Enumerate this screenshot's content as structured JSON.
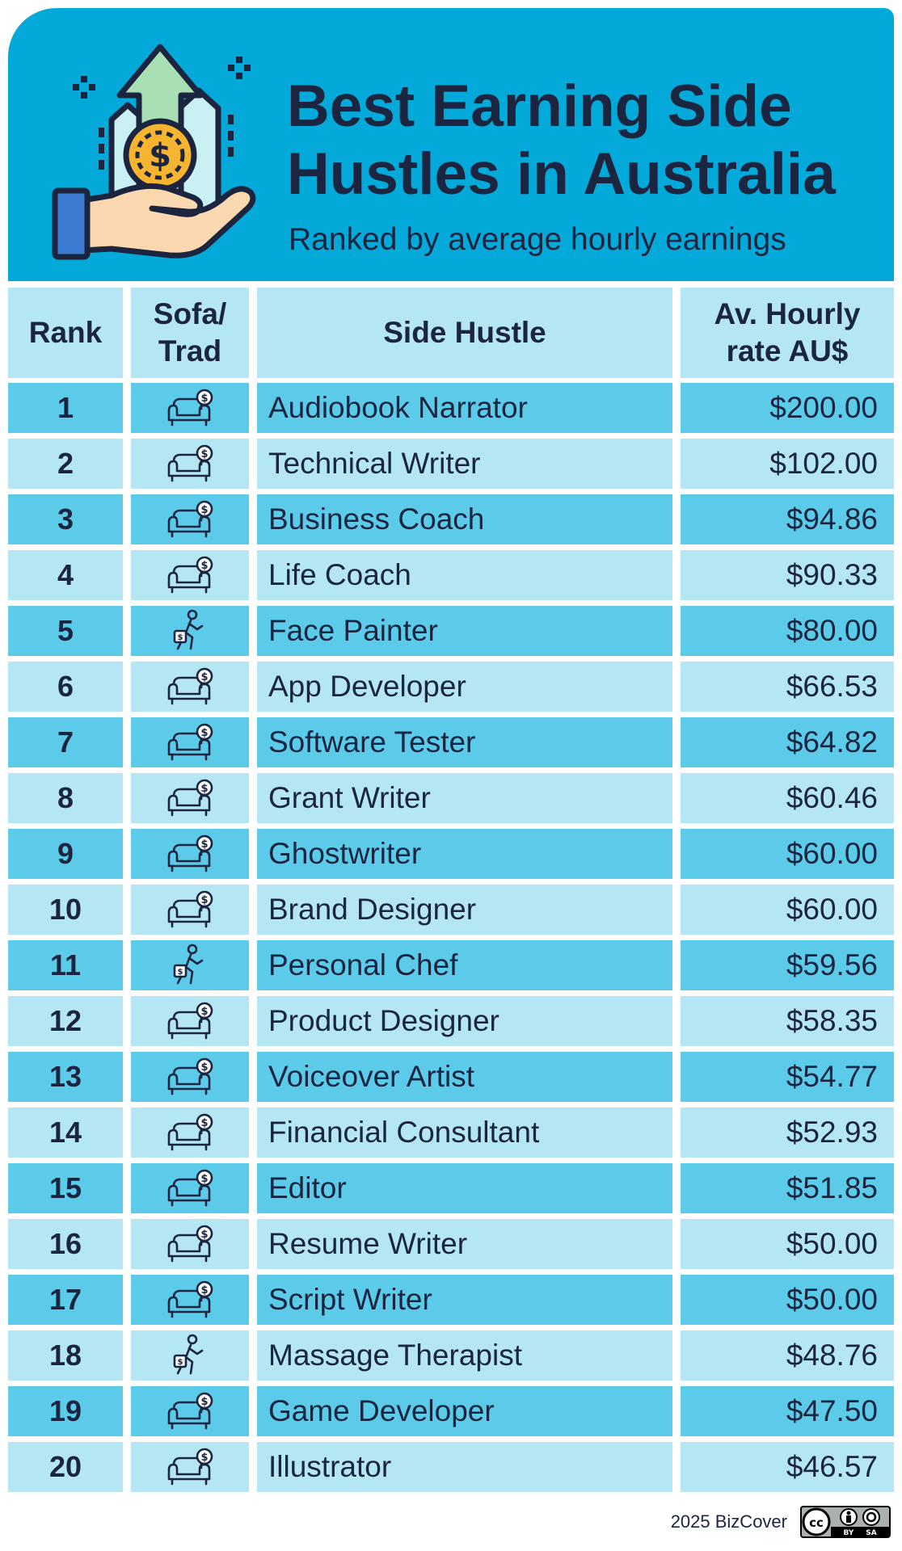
{
  "header": {
    "title_line1": "Best Earning Side",
    "title_line2": "Hustles in Australia",
    "subtitle": "Ranked by average hourly earnings",
    "logo_icon": "hand-holding-dollar-coin-growth-icon"
  },
  "colors": {
    "header_bg": "#03a9d8",
    "row_light": "#b4e6f3",
    "row_dark": "#5ccbe9",
    "text": "#1b2540"
  },
  "legend_icons": {
    "sofa": "sofa-dollar-icon",
    "trad": "walking-person-with-money-bag-icon"
  },
  "chart_data": {
    "type": "table",
    "columns": [
      "Rank",
      "Sofa/\nTrad",
      "Side Hustle",
      "Av. Hourly\nrate AU$"
    ],
    "rows": [
      {
        "rank": "1",
        "type": "sofa",
        "name": "Audiobook Narrator",
        "rate": "$200.00"
      },
      {
        "rank": "2",
        "type": "sofa",
        "name": "Technical Writer",
        "rate": "$102.00"
      },
      {
        "rank": "3",
        "type": "sofa",
        "name": "Business Coach",
        "rate": "$94.86"
      },
      {
        "rank": "4",
        "type": "sofa",
        "name": "Life Coach",
        "rate": "$90.33"
      },
      {
        "rank": "5",
        "type": "trad",
        "name": "Face Painter",
        "rate": "$80.00"
      },
      {
        "rank": "6",
        "type": "sofa",
        "name": "App Developer",
        "rate": "$66.53"
      },
      {
        "rank": "7",
        "type": "sofa",
        "name": "Software Tester",
        "rate": "$64.82"
      },
      {
        "rank": "8",
        "type": "sofa",
        "name": "Grant Writer",
        "rate": "$60.46"
      },
      {
        "rank": "9",
        "type": "sofa",
        "name": "Ghostwriter",
        "rate": "$60.00"
      },
      {
        "rank": "10",
        "type": "sofa",
        "name": "Brand Designer",
        "rate": "$60.00"
      },
      {
        "rank": "11",
        "type": "trad",
        "name": "Personal Chef",
        "rate": "$59.56"
      },
      {
        "rank": "12",
        "type": "sofa",
        "name": "Product Designer",
        "rate": "$58.35"
      },
      {
        "rank": "13",
        "type": "sofa",
        "name": "Voiceover Artist",
        "rate": "$54.77"
      },
      {
        "rank": "14",
        "type": "sofa",
        "name": "Financial Consultant",
        "rate": "$52.93"
      },
      {
        "rank": "15",
        "type": "sofa",
        "name": "Editor",
        "rate": "$51.85"
      },
      {
        "rank": "16",
        "type": "sofa",
        "name": "Resume Writer",
        "rate": "$50.00"
      },
      {
        "rank": "17",
        "type": "sofa",
        "name": "Script Writer",
        "rate": "$50.00"
      },
      {
        "rank": "18",
        "type": "trad",
        "name": "Massage Therapist",
        "rate": "$48.76"
      },
      {
        "rank": "19",
        "type": "sofa",
        "name": "Game Developer",
        "rate": "$47.50"
      },
      {
        "rank": "20",
        "type": "sofa",
        "name": "Illustrator",
        "rate": "$46.57"
      }
    ]
  },
  "footer": {
    "credit": "2025 BizCover",
    "license_icon": "creative-commons-by-sa-icon",
    "license_text": [
      "cc",
      "BY",
      "SA"
    ]
  }
}
